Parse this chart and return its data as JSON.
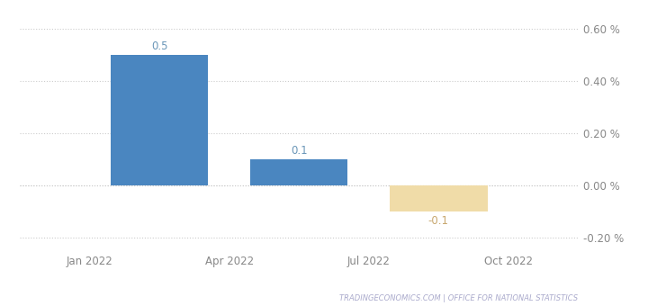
{
  "values": [
    0.5,
    0.1,
    -0.1
  ],
  "bar_colors": [
    "#4a86c0",
    "#4a86c0",
    "#f0dca8"
  ],
  "bar_width": 0.7,
  "ylim": [
    -0.25,
    0.675
  ],
  "yticks": [
    -0.2,
    0.0,
    0.2,
    0.4,
    0.6
  ],
  "ytick_labels": [
    "-0.20 %",
    "0.00 %",
    "0.20 %",
    "0.40 %",
    "0.60 %"
  ],
  "xtick_labels": [
    "Jan 2022",
    "Apr 2022",
    "Jul 2022",
    "Oct 2022"
  ],
  "value_labels": [
    "0.5",
    "0.1",
    "-0.1"
  ],
  "watermark": "TRADINGECONOMICS.COM | OFFICE FOR NATIONAL STATISTICS",
  "background_color": "#ffffff",
  "grid_color": "#cccccc",
  "bar_label_color_pos": "#6a96b8",
  "bar_label_color_neg": "#c8a870",
  "watermark_color": "#aaaacc",
  "tick_color": "#888888"
}
